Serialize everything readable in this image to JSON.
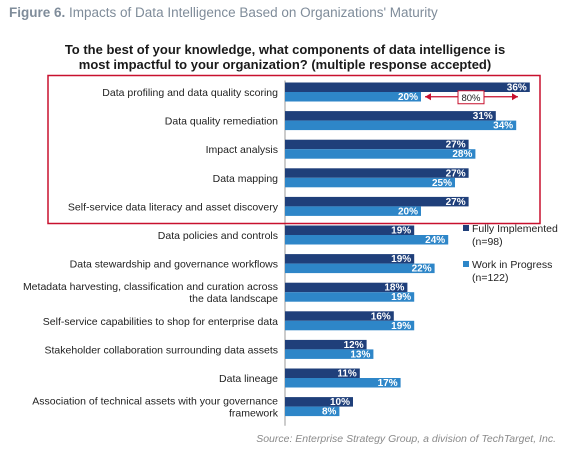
{
  "figure": {
    "label": "Figure 6.",
    "caption": "Impacts of Data Intelligence Based on Organizations' Maturity",
    "source": "Source: Enterprise Strategy Group, a division of TechTarget, Inc."
  },
  "chart_data": {
    "type": "bar",
    "orientation": "horizontal",
    "title_line1": "To the best of your knowledge, what components of data intelligence is",
    "title_line2": "most impactful to your organization? (multiple response accepted)",
    "categories": [
      [
        "Data profiling and data quality scoring"
      ],
      [
        "Data quality remediation"
      ],
      [
        "Impact analysis"
      ],
      [
        "Data mapping"
      ],
      [
        "Self-service data literacy and asset discovery"
      ],
      [
        "Data policies and controls"
      ],
      [
        "Data stewardship and governance workflows"
      ],
      [
        "Metadata harvesting, classification and curation across",
        "the data landscape"
      ],
      [
        "Self-service capabilities to shop for enterprise data"
      ],
      [
        "Stakeholder collaboration surrounding data assets"
      ],
      [
        "Data lineage"
      ],
      [
        "Association of technical assets with your governance",
        "framework"
      ]
    ],
    "series": [
      {
        "name": "Fully Implemented",
        "note": "(n=98)",
        "color": "#1f3f7a",
        "values": [
          36,
          31,
          27,
          27,
          27,
          19,
          19,
          18,
          16,
          12,
          11,
          10
        ]
      },
      {
        "name": "Work in Progress",
        "note": "(n=122)",
        "color": "#2e86c8",
        "values": [
          20,
          34,
          28,
          25,
          20,
          24,
          22,
          19,
          19,
          13,
          17,
          8
        ]
      }
    ],
    "value_suffix": "%",
    "highlight": {
      "from_index": 0,
      "to_index": 4,
      "color": "#c8102e"
    },
    "annotation": {
      "text": "80%",
      "category_index": 0,
      "color": "#c8102e"
    },
    "legend_position": "right"
  }
}
